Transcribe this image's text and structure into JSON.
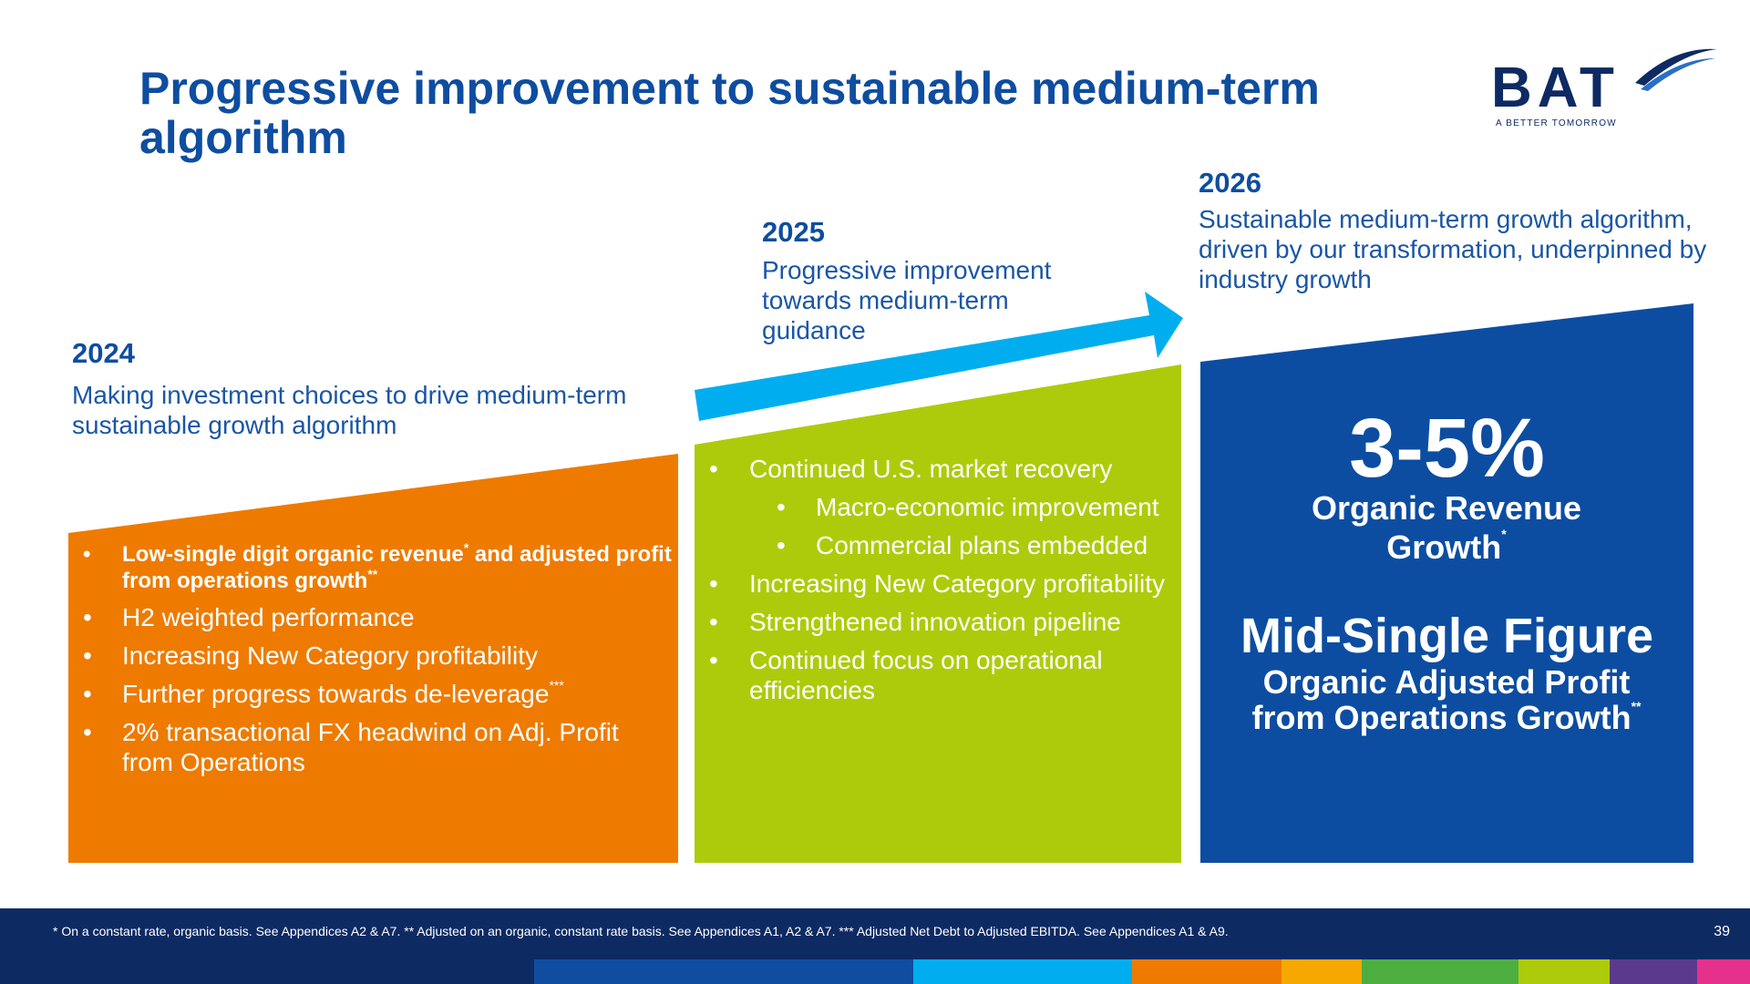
{
  "title": "Progressive improvement to sustainable medium-term algorithm",
  "logo": {
    "text": "BAT",
    "tagline": "A BETTER TOMORROW"
  },
  "stages": [
    {
      "year": "2024",
      "description": "Making investment choices to drive medium-term sustainable growth algorithm",
      "color": "#ee7b00",
      "bullets": [
        {
          "text": "Low-single digit organic revenue",
          "sup": "*",
          "text2": " and adjusted profit from operations growth",
          "sup2": "**"
        },
        {
          "text": "H2 weighted performance"
        },
        {
          "text": "Increasing New Category profitability"
        },
        {
          "text": "Further progress towards de-leverage",
          "sup": "***"
        },
        {
          "text": "2% transactional FX headwind on Adj. Profit from Operations"
        }
      ]
    },
    {
      "year": "2025",
      "description": "Progressive improvement towards medium-term guidance",
      "color": "#aecb0b",
      "bullets": [
        {
          "text": "Continued U.S. market recovery"
        },
        {
          "text": "Macro-economic improvement"
        },
        {
          "text": "Commercial plans embedded"
        },
        {
          "text": "Increasing New Category profitability"
        },
        {
          "text": "Strengthened innovation pipeline"
        },
        {
          "text": "Continued focus on operational efficiencies"
        }
      ]
    },
    {
      "year": "2026",
      "description": "Sustainable medium-term growth algorithm, driven by our transformation, underpinned by industry growth",
      "color": "#0c4da2",
      "metric1": {
        "value": "3-5%",
        "label": "Organic Revenue Growth",
        "sup": "*"
      },
      "metric2": {
        "value": "Mid-Single Figure",
        "label": "Organic Adjusted Profit from Operations Growth",
        "sup": "**"
      }
    }
  ],
  "arrow_color": "#00aeef",
  "footnote": "* On a constant rate, organic basis. See Appendices A2 & A7. ** Adjusted on an organic, constant rate basis. See Appendices A1, A2 & A7. *** Adjusted Net Debt to Adjusted EBITDA. See Appendices A1 & A9.",
  "page_number": "39",
  "brand_stripe_colors": [
    "#0e4da0",
    "#00aeef",
    "#ee7b00",
    "#f7a800",
    "#4cae3f",
    "#aecb0b",
    "#5b3a8e",
    "#e6318c"
  ]
}
